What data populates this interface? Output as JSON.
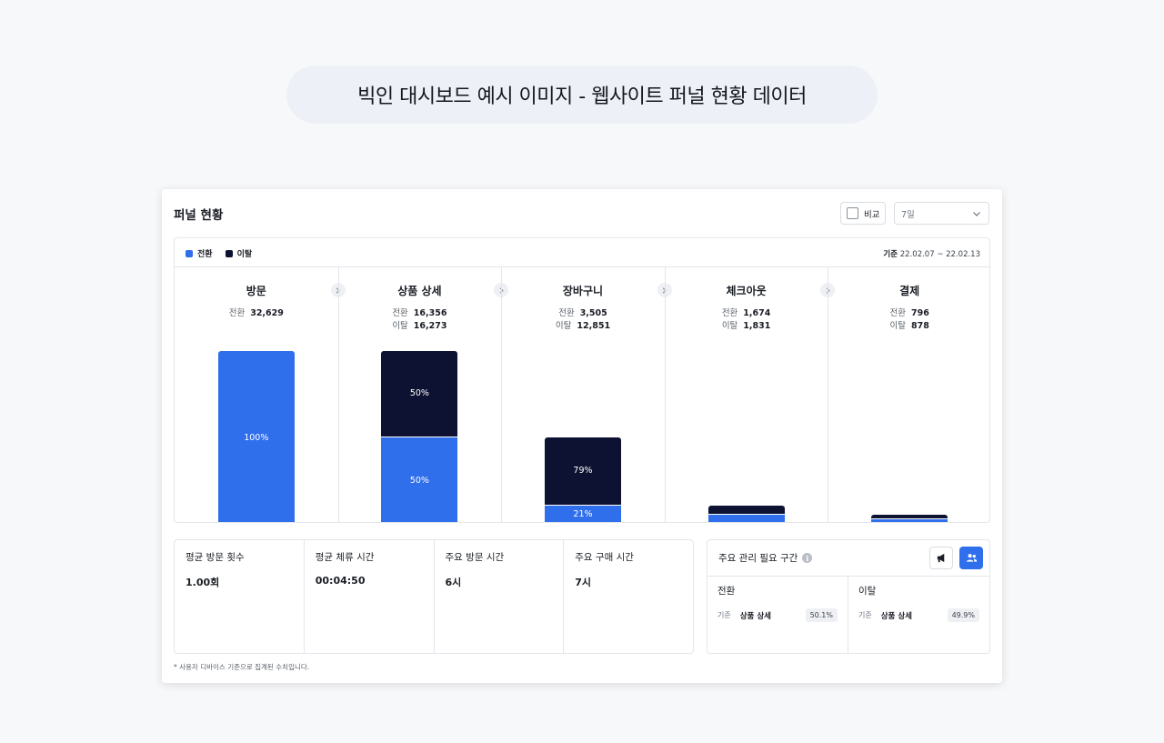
{
  "banner": {
    "title": "빅인 대시보드 예시 이미지 - 웹사이트 퍼널 현황 데이터"
  },
  "card": {
    "title": "퍼널 현황",
    "compare_label": "비교",
    "period_value": "7일"
  },
  "legend": {
    "conversion_label": "전환",
    "dropoff_label": "이탈",
    "conversion_color": "#2f6fec",
    "dropoff_color": "#0d1232"
  },
  "date_range": {
    "prefix": "기준",
    "value": "22.02.07 ~ 22.02.13"
  },
  "stages": [
    {
      "name": "방문",
      "conv_label": "전환",
      "conv_value": "32,629",
      "drop_label": "",
      "drop_value": "",
      "conv_pct_label": "100%",
      "drop_pct_label": "",
      "conv_count": 32629,
      "drop_count": 0
    },
    {
      "name": "상품 상세",
      "conv_label": "전환",
      "conv_value": "16,356",
      "drop_label": "이탈",
      "drop_value": "16,273",
      "conv_pct_label": "50%",
      "drop_pct_label": "50%",
      "conv_count": 16356,
      "drop_count": 16273
    },
    {
      "name": "장바구니",
      "conv_label": "전환",
      "conv_value": "3,505",
      "drop_label": "이탈",
      "drop_value": "12,851",
      "conv_pct_label": "21%",
      "drop_pct_label": "79%",
      "conv_count": 3505,
      "drop_count": 12851
    },
    {
      "name": "체크아웃",
      "conv_label": "전환",
      "conv_value": "1,674",
      "drop_label": "이탈",
      "drop_value": "1,831",
      "conv_pct_label": "",
      "drop_pct_label": "",
      "conv_count": 1674,
      "drop_count": 1831
    },
    {
      "name": "결제",
      "conv_label": "전환",
      "conv_value": "796",
      "drop_label": "이탈",
      "drop_value": "878",
      "conv_pct_label": "",
      "drop_pct_label": "",
      "conv_count": 796,
      "drop_count": 878
    }
  ],
  "metrics": [
    {
      "label": "평균 방문 횟수",
      "value": "1.00회"
    },
    {
      "label": "평균 체류 시간",
      "value": "00:04:50"
    },
    {
      "label": "주요 방문 시간",
      "value": "6시"
    },
    {
      "label": "주요 구매 시간",
      "value": "7시"
    }
  ],
  "critical": {
    "title": "주요 관리 필요 구간",
    "info_glyph": "i",
    "conversion": {
      "title": "전환",
      "basis": "기준",
      "stage": "상품 상세",
      "pct": "50.1%"
    },
    "dropoff": {
      "title": "이탈",
      "basis": "기준",
      "stage": "상품 상세",
      "pct": "49.9%"
    }
  },
  "footnote": "* 사용자 디바이스 기준으로 집계된 수치입니다."
}
